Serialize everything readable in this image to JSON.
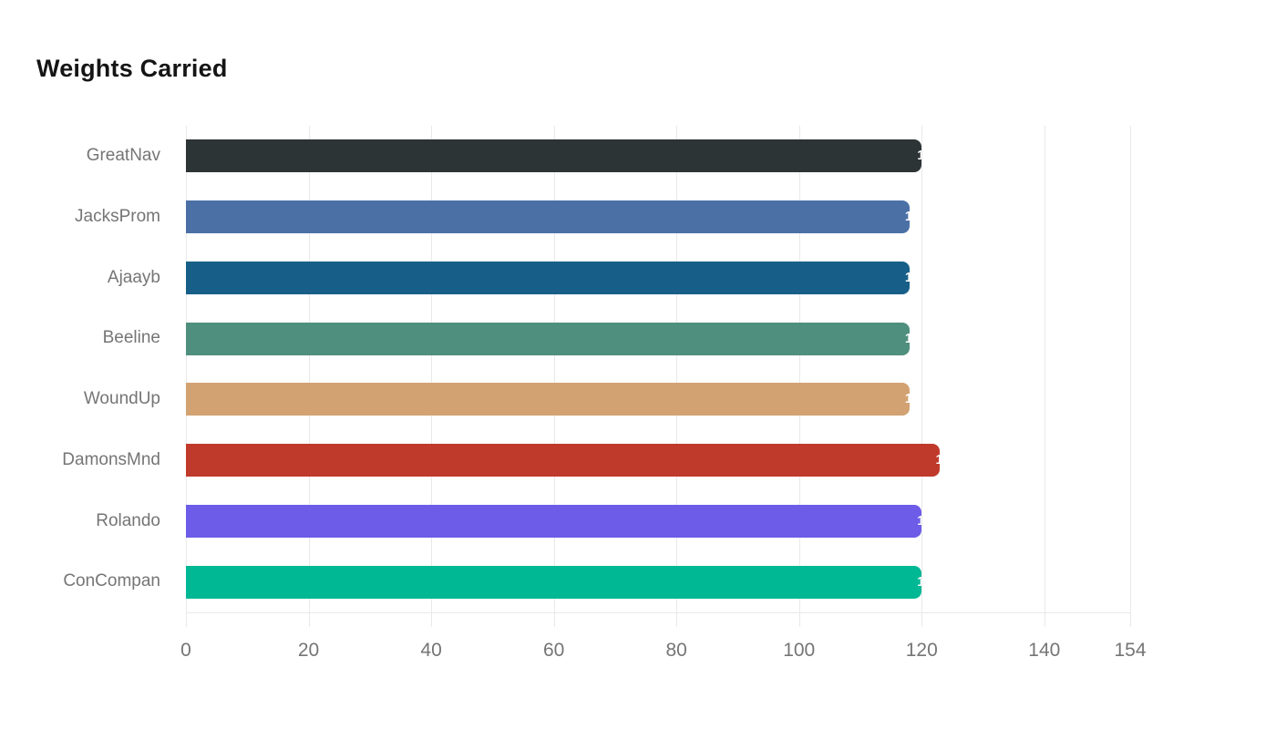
{
  "page": {
    "background_color": "#ffffff"
  },
  "chart_data": {
    "type": "bar",
    "orientation": "horizontal",
    "title": "Weights Carried",
    "categories": [
      "GreatNav",
      "JacksProm",
      "Ajaayb",
      "Beeline",
      "WoundUp",
      "DamonsMnd",
      "Rolando",
      "ConCompan"
    ],
    "values": [
      120,
      118,
      118,
      118,
      118,
      123,
      120,
      120
    ],
    "bar_colors": [
      "#2d3436",
      "#4b70a6",
      "#175f88",
      "#4f8f7d",
      "#d3a272",
      "#c03a2b",
      "#6c5ce7",
      "#00b894"
    ],
    "xlabel": "",
    "ylabel": "",
    "xlim": [
      0,
      154
    ],
    "x_ticks": [
      0,
      20,
      40,
      60,
      80,
      100,
      120,
      140,
      154
    ],
    "grid": "vertical-only",
    "legend": "none",
    "value_label_color": "#ffffff",
    "value_label_note": "white value labels anchored at bar ends, clipped by bar edge",
    "axis_tick_color": "#757575",
    "category_label_color": "#757575",
    "grid_color": "#e9e9e9",
    "title_color": "#151515"
  }
}
